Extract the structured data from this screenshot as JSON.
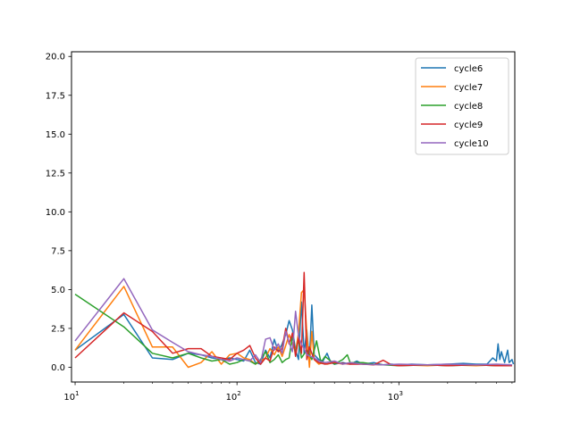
{
  "chart_data": {
    "type": "line",
    "title": "",
    "xlabel": "",
    "ylabel": "",
    "xscale": "log",
    "xlim": [
      9.5,
      5200
    ],
    "ylim": [
      -0.95,
      20.3
    ],
    "x_ticks": [
      {
        "value": 10,
        "base": "10",
        "exp": "1"
      },
      {
        "value": 100,
        "base": "10",
        "exp": "2"
      },
      {
        "value": 1000,
        "base": "10",
        "exp": "3"
      }
    ],
    "y_ticks": [
      {
        "value": 0.0,
        "label": "0.0"
      },
      {
        "value": 2.5,
        "label": "2.5"
      },
      {
        "value": 5.0,
        "label": "5.0"
      },
      {
        "value": 7.5,
        "label": "7.5"
      },
      {
        "value": 10.0,
        "label": "10.0"
      },
      {
        "value": 12.5,
        "label": "12.5"
      },
      {
        "value": 15.0,
        "label": "15.0"
      },
      {
        "value": 17.5,
        "label": "17.5"
      },
      {
        "value": 20.0,
        "label": "20.0"
      }
    ],
    "legend_position": "top-right",
    "grid": false,
    "series": [
      {
        "name": "cycle6",
        "color": "#1f77b4",
        "points": [
          [
            10,
            1.1
          ],
          [
            20,
            3.4
          ],
          [
            30,
            0.6
          ],
          [
            40,
            0.5
          ],
          [
            50,
            0.9
          ],
          [
            60,
            0.8
          ],
          [
            70,
            0.6
          ],
          [
            80,
            0.5
          ],
          [
            90,
            0.6
          ],
          [
            100,
            0.5
          ],
          [
            110,
            0.4
          ],
          [
            120,
            1.1
          ],
          [
            130,
            0.3
          ],
          [
            140,
            0.2
          ],
          [
            150,
            1.1
          ],
          [
            160,
            0.6
          ],
          [
            170,
            1.8
          ],
          [
            180,
            1.0
          ],
          [
            190,
            1.5
          ],
          [
            200,
            2.1
          ],
          [
            210,
            3.0
          ],
          [
            220,
            2.4
          ],
          [
            230,
            1.1
          ],
          [
            240,
            0.5
          ],
          [
            250,
            4.2
          ],
          [
            260,
            0.9
          ],
          [
            270,
            2.4
          ],
          [
            280,
            0.4
          ],
          [
            290,
            4.0
          ],
          [
            300,
            0.8
          ],
          [
            320,
            0.5
          ],
          [
            340,
            0.4
          ],
          [
            360,
            0.9
          ],
          [
            380,
            0.3
          ],
          [
            400,
            0.2
          ],
          [
            450,
            0.3
          ],
          [
            500,
            0.2
          ],
          [
            550,
            0.4
          ],
          [
            600,
            0.2
          ],
          [
            700,
            0.3
          ],
          [
            800,
            0.15
          ],
          [
            900,
            0.2
          ],
          [
            1000,
            0.15
          ],
          [
            1200,
            0.2
          ],
          [
            1500,
            0.15
          ],
          [
            2000,
            0.2
          ],
          [
            2500,
            0.25
          ],
          [
            3000,
            0.2
          ],
          [
            3500,
            0.2
          ],
          [
            3800,
            0.6
          ],
          [
            4000,
            0.4
          ],
          [
            4100,
            1.5
          ],
          [
            4200,
            0.5
          ],
          [
            4300,
            1.0
          ],
          [
            4500,
            0.3
          ],
          [
            4700,
            1.1
          ],
          [
            4800,
            0.3
          ],
          [
            5000,
            0.5
          ],
          [
            5100,
            0.2
          ]
        ]
      },
      {
        "name": "cycle7",
        "color": "#ff7f0e",
        "points": [
          [
            10,
            1.1
          ],
          [
            20,
            5.2
          ],
          [
            30,
            1.3
          ],
          [
            40,
            1.3
          ],
          [
            50,
            0.0
          ],
          [
            60,
            0.3
          ],
          [
            70,
            1.0
          ],
          [
            80,
            0.2
          ],
          [
            90,
            0.8
          ],
          [
            100,
            0.9
          ],
          [
            110,
            0.6
          ],
          [
            120,
            0.5
          ],
          [
            130,
            0.2
          ],
          [
            140,
            0.4
          ],
          [
            150,
            0.6
          ],
          [
            160,
            1.2
          ],
          [
            170,
            0.8
          ],
          [
            180,
            1.3
          ],
          [
            190,
            0.7
          ],
          [
            200,
            1.4
          ],
          [
            210,
            2.1
          ],
          [
            220,
            1.5
          ],
          [
            230,
            1.0
          ],
          [
            240,
            2.2
          ],
          [
            250,
            4.8
          ],
          [
            260,
            5.0
          ],
          [
            270,
            2.2
          ],
          [
            280,
            0.0
          ],
          [
            290,
            2.3
          ],
          [
            300,
            0.5
          ],
          [
            320,
            0.2
          ],
          [
            340,
            0.3
          ],
          [
            360,
            0.2
          ],
          [
            400,
            0.3
          ],
          [
            450,
            0.2
          ],
          [
            500,
            0.3
          ],
          [
            600,
            0.2
          ],
          [
            800,
            0.15
          ],
          [
            1000,
            0.15
          ],
          [
            1500,
            0.1
          ],
          [
            2000,
            0.15
          ],
          [
            3000,
            0.1
          ],
          [
            4000,
            0.15
          ],
          [
            5000,
            0.1
          ]
        ]
      },
      {
        "name": "cycle8",
        "color": "#2ca02c",
        "points": [
          [
            10,
            4.7
          ],
          [
            20,
            2.6
          ],
          [
            30,
            0.9
          ],
          [
            40,
            0.6
          ],
          [
            50,
            0.9
          ],
          [
            60,
            0.6
          ],
          [
            70,
            0.4
          ],
          [
            80,
            0.5
          ],
          [
            90,
            0.2
          ],
          [
            100,
            0.3
          ],
          [
            110,
            0.5
          ],
          [
            120,
            0.4
          ],
          [
            130,
            0.2
          ],
          [
            140,
            0.5
          ],
          [
            150,
            1.0
          ],
          [
            160,
            0.3
          ],
          [
            170,
            0.5
          ],
          [
            180,
            0.8
          ],
          [
            190,
            0.3
          ],
          [
            200,
            0.5
          ],
          [
            210,
            0.6
          ],
          [
            220,
            2.0
          ],
          [
            230,
            0.9
          ],
          [
            240,
            1.8
          ],
          [
            250,
            0.6
          ],
          [
            270,
            1.1
          ],
          [
            290,
            0.5
          ],
          [
            310,
            1.7
          ],
          [
            330,
            0.3
          ],
          [
            350,
            0.7
          ],
          [
            400,
            0.2
          ],
          [
            450,
            0.5
          ],
          [
            480,
            0.8
          ],
          [
            500,
            0.3
          ],
          [
            600,
            0.3
          ],
          [
            700,
            0.2
          ],
          [
            800,
            0.15
          ],
          [
            1000,
            0.1
          ],
          [
            1500,
            0.15
          ],
          [
            2000,
            0.1
          ],
          [
            3000,
            0.15
          ],
          [
            4000,
            0.1
          ],
          [
            5000,
            0.1
          ]
        ]
      },
      {
        "name": "cycle9",
        "color": "#d62728",
        "points": [
          [
            10,
            0.6
          ],
          [
            20,
            3.5
          ],
          [
            30,
            2.3
          ],
          [
            40,
            0.9
          ],
          [
            50,
            1.2
          ],
          [
            60,
            1.2
          ],
          [
            70,
            0.7
          ],
          [
            80,
            0.6
          ],
          [
            90,
            0.5
          ],
          [
            100,
            0.9
          ],
          [
            110,
            1.1
          ],
          [
            120,
            1.4
          ],
          [
            130,
            0.6
          ],
          [
            140,
            0.2
          ],
          [
            150,
            0.6
          ],
          [
            160,
            0.4
          ],
          [
            170,
            1.3
          ],
          [
            180,
            1.0
          ],
          [
            190,
            1.2
          ],
          [
            200,
            2.5
          ],
          [
            210,
            1.5
          ],
          [
            220,
            2.2
          ],
          [
            230,
            0.7
          ],
          [
            240,
            1.9
          ],
          [
            250,
            0.9
          ],
          [
            260,
            6.1
          ],
          [
            270,
            0.5
          ],
          [
            280,
            1.3
          ],
          [
            300,
            0.5
          ],
          [
            320,
            0.3
          ],
          [
            350,
            0.2
          ],
          [
            400,
            0.3
          ],
          [
            500,
            0.2
          ],
          [
            600,
            0.2
          ],
          [
            700,
            0.15
          ],
          [
            800,
            0.45
          ],
          [
            900,
            0.15
          ],
          [
            1000,
            0.1
          ],
          [
            1500,
            0.15
          ],
          [
            2000,
            0.1
          ],
          [
            3000,
            0.15
          ],
          [
            4000,
            0.1
          ],
          [
            5000,
            0.1
          ]
        ]
      },
      {
        "name": "cycle10",
        "color": "#9467bd",
        "points": [
          [
            10,
            1.7
          ],
          [
            20,
            5.7
          ],
          [
            30,
            2.4
          ],
          [
            40,
            1.6
          ],
          [
            50,
            1.0
          ],
          [
            60,
            0.8
          ],
          [
            70,
            0.7
          ],
          [
            80,
            0.5
          ],
          [
            90,
            0.4
          ],
          [
            100,
            0.6
          ],
          [
            110,
            0.5
          ],
          [
            120,
            0.4
          ],
          [
            130,
            0.8
          ],
          [
            140,
            0.3
          ],
          [
            150,
            1.8
          ],
          [
            160,
            1.9
          ],
          [
            170,
            1.1
          ],
          [
            180,
            1.5
          ],
          [
            190,
            0.9
          ],
          [
            200,
            2.3
          ],
          [
            210,
            1.6
          ],
          [
            220,
            1.0
          ],
          [
            230,
            3.6
          ],
          [
            240,
            2.0
          ],
          [
            250,
            1.5
          ],
          [
            260,
            1.2
          ],
          [
            270,
            0.8
          ],
          [
            300,
            0.6
          ],
          [
            320,
            0.4
          ],
          [
            350,
            0.3
          ],
          [
            400,
            0.4
          ],
          [
            450,
            0.2
          ],
          [
            500,
            0.3
          ],
          [
            600,
            0.2
          ],
          [
            800,
            0.15
          ],
          [
            1000,
            0.2
          ],
          [
            1500,
            0.15
          ],
          [
            2000,
            0.2
          ],
          [
            3000,
            0.15
          ],
          [
            4000,
            0.2
          ],
          [
            5000,
            0.15
          ]
        ]
      }
    ]
  }
}
